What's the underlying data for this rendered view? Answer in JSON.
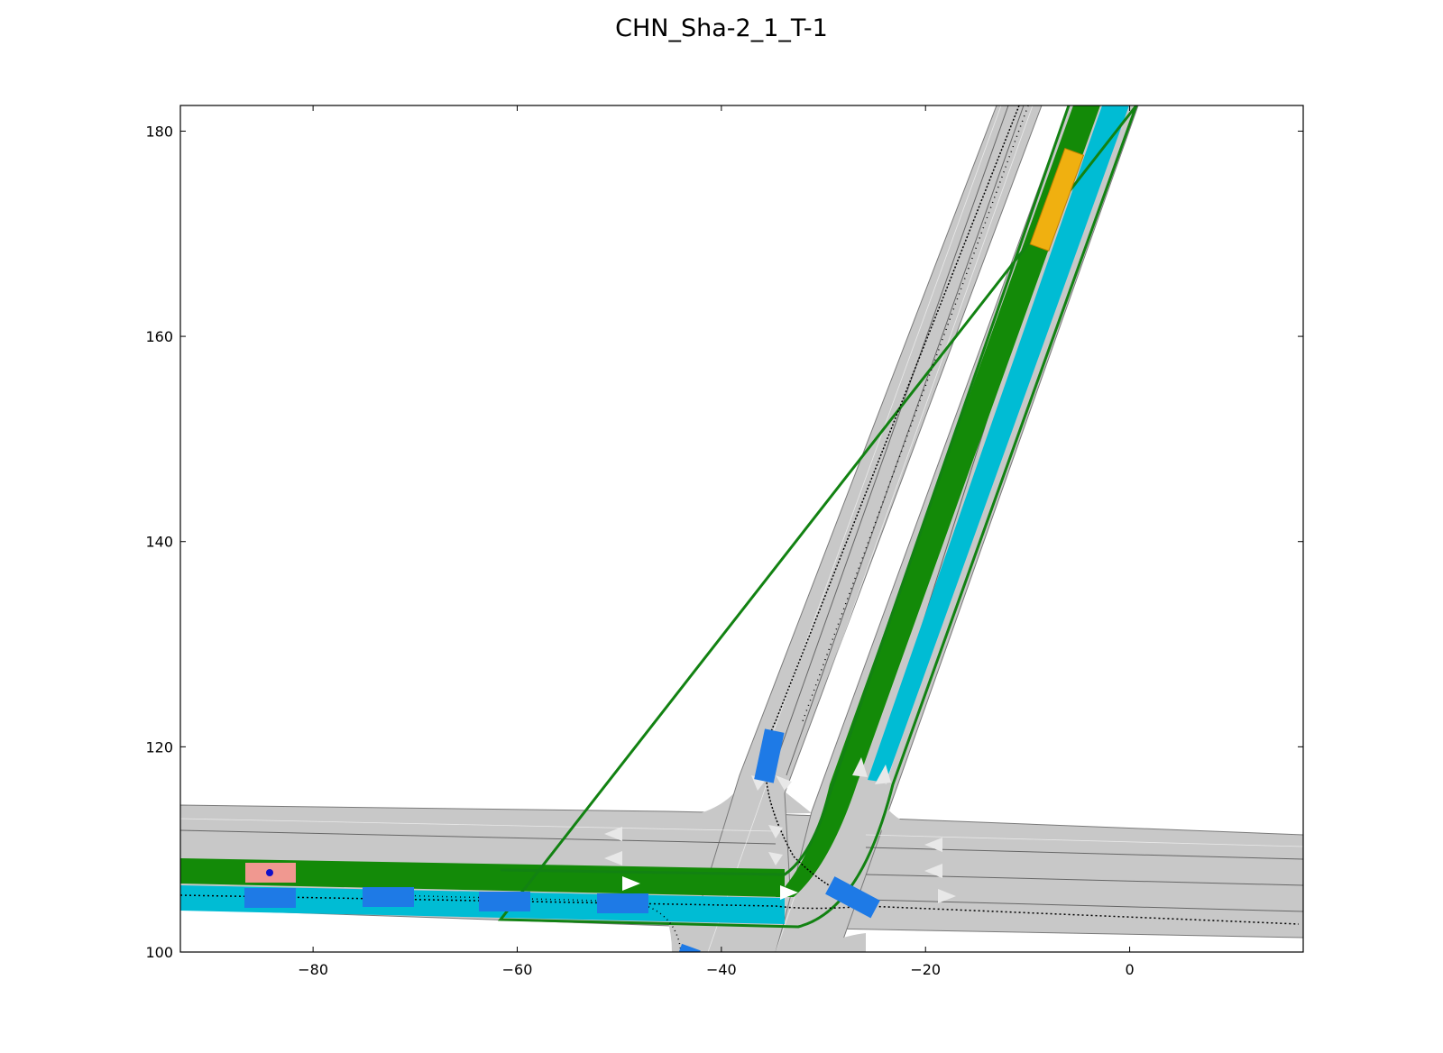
{
  "title": "CHN_Sha-2_1_T-1",
  "axes": {
    "xlim": [
      -93,
      17
    ],
    "ylim": [
      100,
      182.5
    ],
    "xticks": [
      {
        "value": -80,
        "label": "−80"
      },
      {
        "value": -60,
        "label": "−60"
      },
      {
        "value": -40,
        "label": "−40"
      },
      {
        "value": -20,
        "label": "−20"
      },
      {
        "value": 0,
        "label": "0"
      }
    ],
    "yticks": [
      {
        "value": 100,
        "label": "100"
      },
      {
        "value": 120,
        "label": "120"
      },
      {
        "value": 140,
        "label": "140"
      },
      {
        "value": 160,
        "label": "160"
      },
      {
        "value": 180,
        "label": "180"
      }
    ]
  },
  "colors": {
    "road": "#c8c8c8",
    "road_edge": "#7a7a7a",
    "goal_lanes": "#138a08",
    "start_lanes": "#00bcd4",
    "route_outline": "#128212",
    "obstacle": "#1e7ae6",
    "goal_vehicle": "#f0b010",
    "ego_vehicle": "#f09890",
    "ego_center": "#1010c8",
    "trajectory": "#000000"
  },
  "legend": "none",
  "grid": false
}
